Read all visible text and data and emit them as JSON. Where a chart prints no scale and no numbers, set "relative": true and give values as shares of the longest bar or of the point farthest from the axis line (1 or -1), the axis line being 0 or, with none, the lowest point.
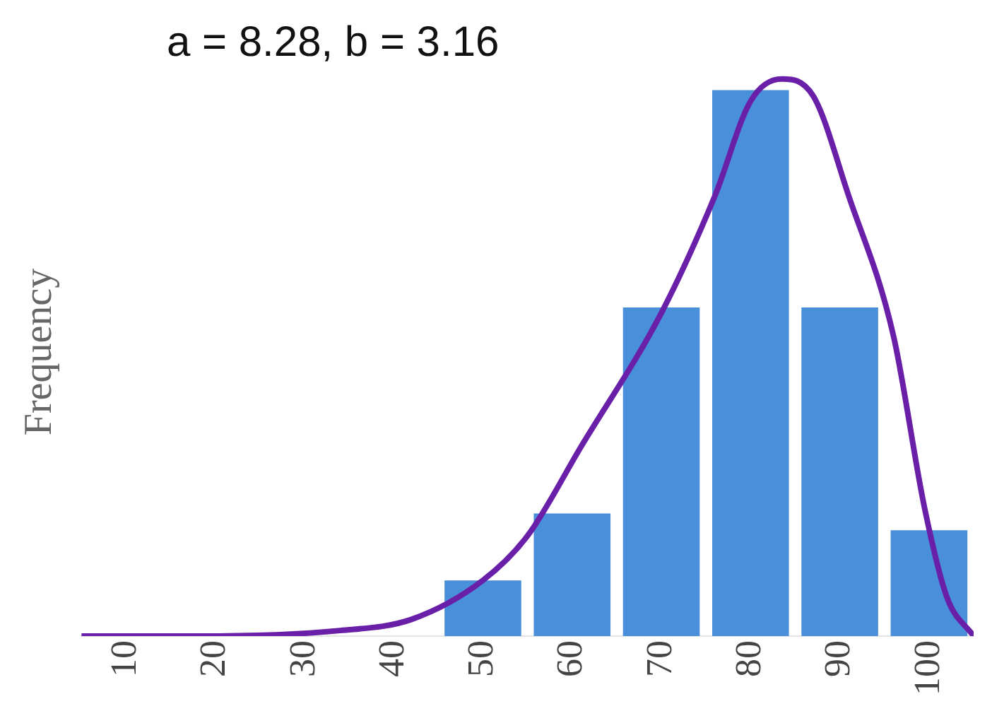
{
  "chart_data": {
    "type": "histogram",
    "relative": true,
    "ylabel": "Frequency",
    "annotations": [
      "a = 8.28, b = 3.16"
    ],
    "xlim": [
      5,
      105
    ],
    "xticks": [
      10,
      20,
      30,
      40,
      50,
      60,
      70,
      80,
      90,
      100
    ],
    "grid": false,
    "legend": false,
    "series": [
      {
        "type": "histogram",
        "color": "#4a8fd9",
        "bins": [
          45,
          55,
          65,
          75,
          85,
          95,
          105
        ],
        "values": [
          0.1,
          0.22,
          0.59,
          0.98,
          0.59,
          0.19
        ]
      },
      {
        "type": "line",
        "color": "#6a1fa8",
        "x": [
          5,
          18,
          34,
          42,
          50,
          55,
          61,
          70,
          76,
          80,
          83.5,
          87,
          91,
          96,
          99.5,
          102,
          105
        ],
        "values": [
          0,
          0,
          0.01,
          0.03,
          0.1,
          0.18,
          0.34,
          0.58,
          0.79,
          0.96,
          1,
          0.97,
          0.79,
          0.54,
          0.23,
          0.07,
          0
        ]
      }
    ]
  }
}
